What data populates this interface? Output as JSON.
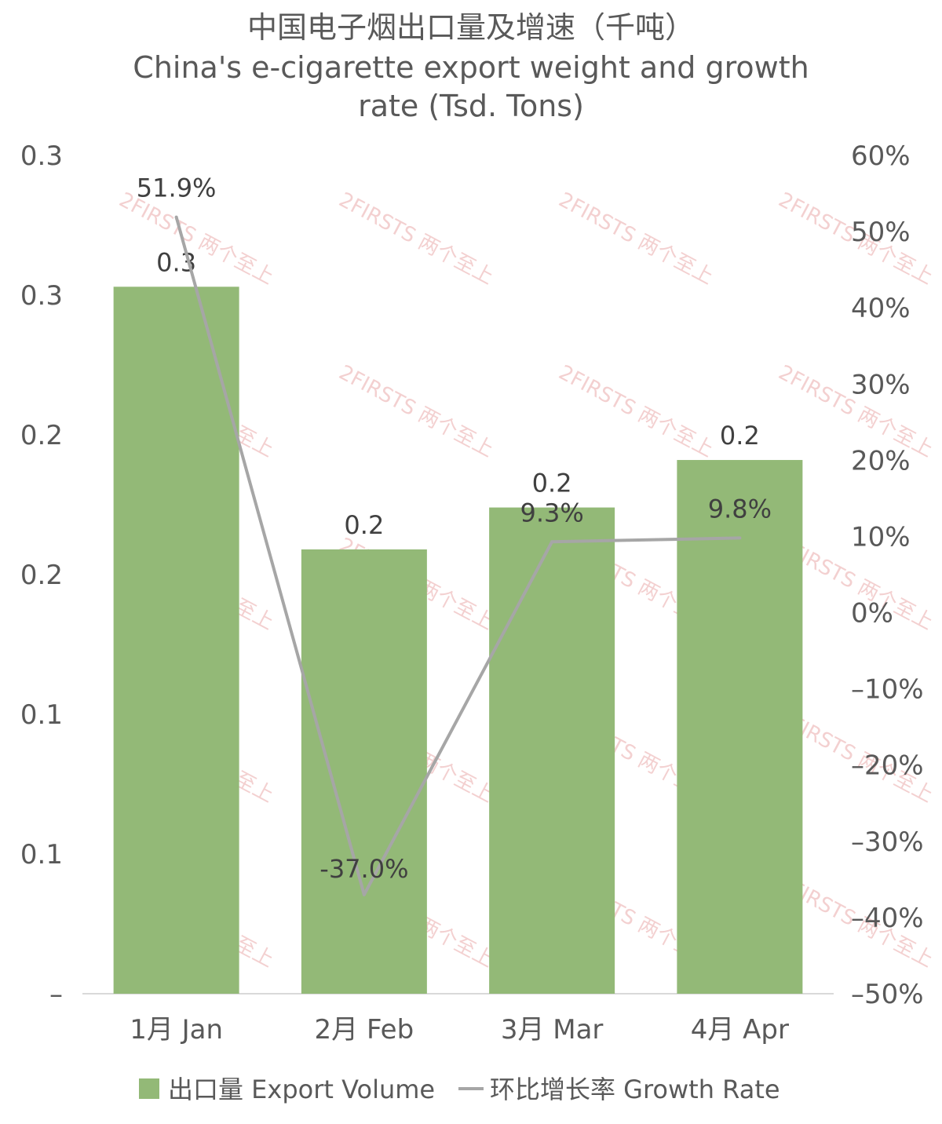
{
  "chart_data": {
    "type": "bar",
    "title_lines": [
      "中国电子烟出口量及增速（千吨）",
      "China's e-cigarette export weight and growth",
      "rate (Tsd. Tons)"
    ],
    "categories": [
      "1月 Jan",
      "2月 Feb",
      "3月 Mar",
      "4月 Apr"
    ],
    "series": [
      {
        "name": "出口量 Export Volume",
        "type": "bar",
        "axis": "left",
        "values": [
          0.253,
          0.159,
          0.174,
          0.191
        ],
        "labels": [
          "0.3",
          "0.2",
          "0.2",
          "0.2"
        ]
      },
      {
        "name": "环比增长率 Growth Rate",
        "type": "line",
        "axis": "right",
        "values": [
          51.9,
          -37.0,
          9.3,
          9.8
        ],
        "labels": [
          "51.9%",
          "-37.0%",
          "9.3%",
          "9.8%"
        ]
      }
    ],
    "left_axis": {
      "ylim": [
        0,
        0.3
      ],
      "ticks": [
        0,
        0.05,
        0.1,
        0.15,
        0.2,
        0.25,
        0.3
      ],
      "tick_labels": [
        "–",
        "0.1",
        "0.1",
        "0.2",
        "0.2",
        "0.3",
        "0.3"
      ]
    },
    "right_axis": {
      "ylim": [
        -50,
        60
      ],
      "ticks": [
        -50,
        -40,
        -30,
        -20,
        -10,
        0,
        10,
        20,
        30,
        40,
        50,
        60
      ],
      "tick_labels": [
        "–50%",
        "–40%",
        "–30%",
        "–20%",
        "–10%",
        "0%",
        "10%",
        "20%",
        "30%",
        "40%",
        "50%",
        "60%"
      ]
    },
    "grid": false,
    "legend_position": "bottom",
    "colors": {
      "bar": "#93b977",
      "line": "#a6a6a6",
      "axis": "#d9d9d9",
      "text": "#595959"
    }
  },
  "watermark": {
    "text": "2FIRSTS 两个至上"
  }
}
